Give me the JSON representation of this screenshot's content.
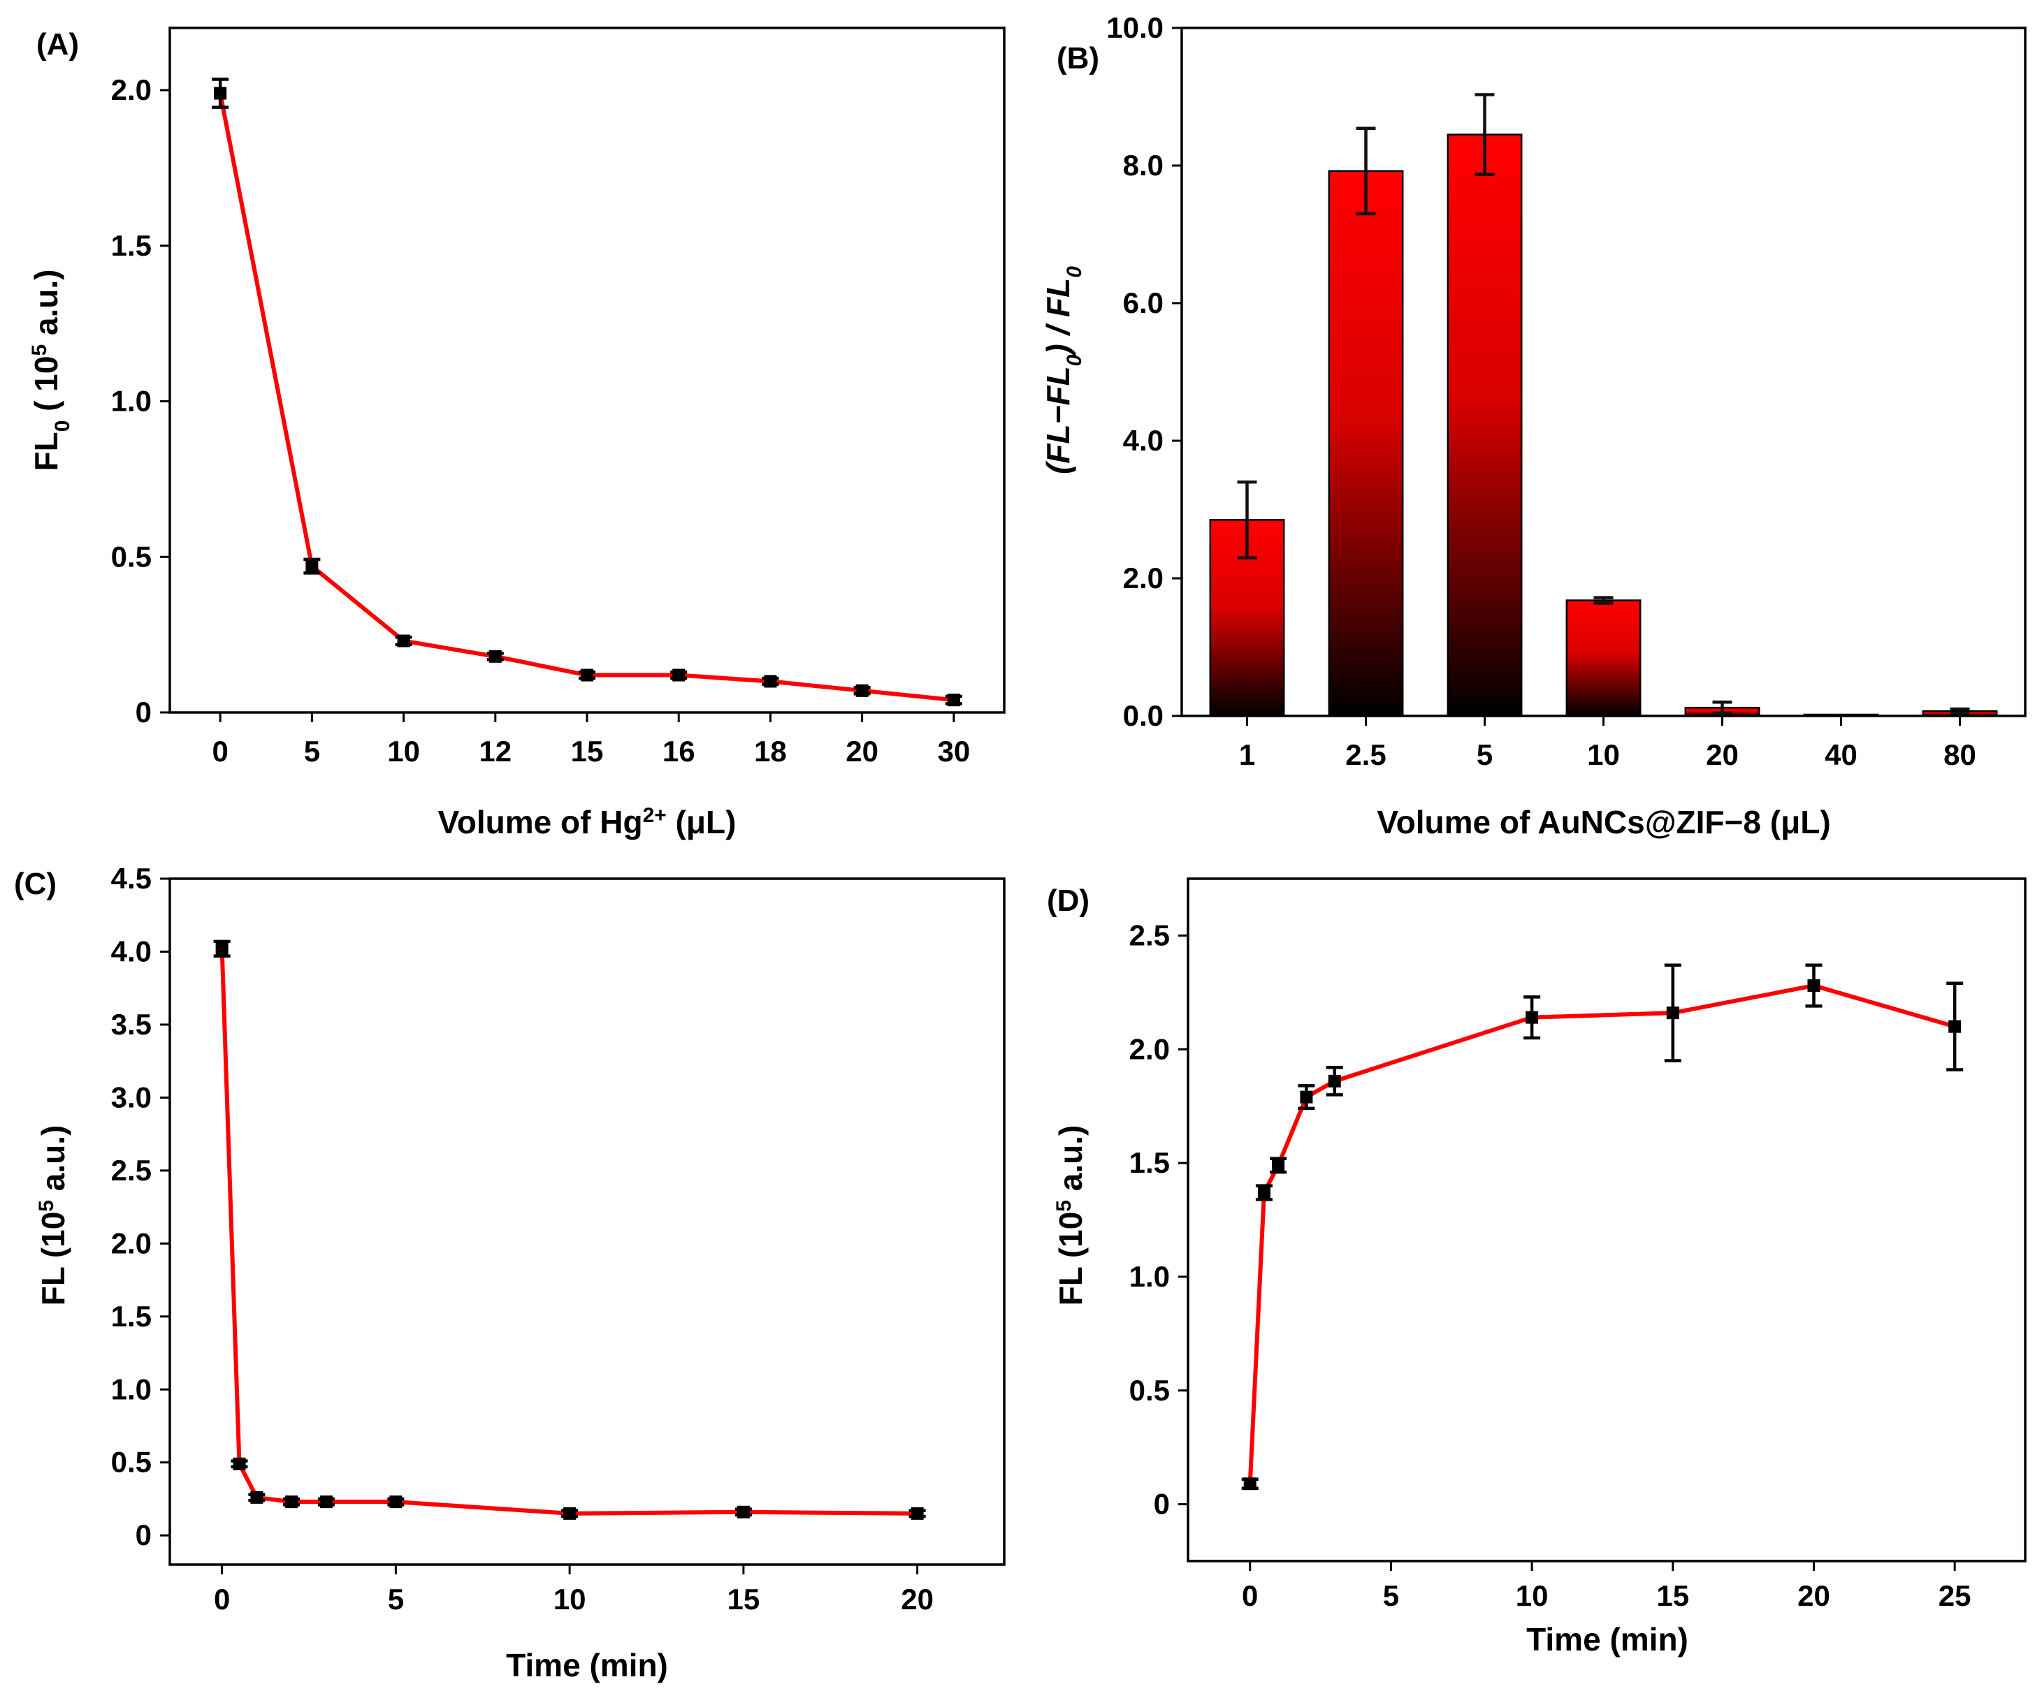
{
  "chart_data": [
    {
      "id": "A",
      "type": "line",
      "panel_label": "(A)",
      "x_scale": "categorical",
      "categories": [
        "0",
        "5",
        "10",
        "12",
        "15",
        "16",
        "18",
        "20",
        "30"
      ],
      "series": [
        {
          "values": [
            1.99,
            0.47,
            0.23,
            0.18,
            0.12,
            0.12,
            0.1,
            0.07,
            0.04
          ],
          "errors": [
            0.045,
            0.022,
            0.012,
            0.01,
            0.01,
            0.01,
            0.01,
            0.01,
            0.012
          ]
        }
      ],
      "ylim": [
        0,
        2.2
      ],
      "yticks": [
        0,
        0.5,
        1.0,
        1.5,
        2.0
      ],
      "ytick_labels": [
        "0",
        "0.5",
        "1.0",
        "1.5",
        "2.0"
      ],
      "ylabel": {
        "main": "FL",
        "sub": "0",
        "rest": " ( 10",
        "sup": "5",
        "tail": " a.u.)"
      },
      "xlabel": {
        "main": "Volume of Hg",
        "sup": "2+",
        "tail": " (μL)"
      },
      "line_color": "#ff0000",
      "marker_color": "#000000",
      "grid": false
    },
    {
      "id": "B",
      "type": "bar",
      "panel_label": "(B)",
      "categories": [
        "1",
        "2.5",
        "5",
        "10",
        "20",
        "40",
        "80"
      ],
      "series": [
        {
          "values": [
            2.85,
            7.92,
            8.45,
            1.68,
            0.12,
            0.02,
            0.07
          ],
          "errors": [
            0.55,
            0.62,
            0.58,
            0.04,
            0.08,
            0.0,
            0.03
          ]
        }
      ],
      "ylim": [
        0,
        10.0
      ],
      "yticks": [
        0,
        2.0,
        4.0,
        6.0,
        8.0,
        10.0
      ],
      "ytick_labels": [
        "0.0",
        "2.0",
        "4.0",
        "6.0",
        "8.0",
        "10.0"
      ],
      "ylabel": {
        "text": "(FL−FL",
        "sub": "0",
        "tail": ") / FL",
        "sub2": "0"
      },
      "xlabel": {
        "text": "Volume of AuNCs@ZIF−8 (μL)"
      },
      "bar_gradient": [
        "#ff0000",
        "#000000"
      ],
      "grid": false
    },
    {
      "id": "C",
      "type": "line",
      "panel_label": "(C)",
      "x": [
        0,
        0.5,
        1,
        2,
        3,
        5,
        10,
        15,
        20
      ],
      "series": [
        {
          "values": [
            4.02,
            0.49,
            0.26,
            0.23,
            0.23,
            0.23,
            0.15,
            0.16,
            0.15
          ],
          "errors": [
            0.05,
            0.02,
            0.02,
            0.02,
            0.02,
            0.02,
            0.02,
            0.02,
            0.02
          ]
        }
      ],
      "xlim": [
        -1.5,
        22.5
      ],
      "xticks": [
        0,
        5,
        10,
        15,
        20
      ],
      "ylim": [
        -0.2,
        4.5
      ],
      "yticks": [
        0,
        0.5,
        1.0,
        1.5,
        2.0,
        2.5,
        3.0,
        3.5,
        4.0,
        4.5
      ],
      "ytick_labels": [
        "0",
        "0.5",
        "1.0",
        "1.5",
        "2.0",
        "2.5",
        "3.0",
        "3.5",
        "4.0",
        "4.5"
      ],
      "ylabel": {
        "main": "FL",
        "rest": "  (10",
        "sup": "5",
        "tail": " a.u.)"
      },
      "xlabel": {
        "text": "Time (min)"
      },
      "line_color": "#ff0000",
      "marker_color": "#000000",
      "grid": false
    },
    {
      "id": "D",
      "type": "line",
      "panel_label": "(D)",
      "x": [
        0,
        0.5,
        1,
        2,
        3,
        10,
        15,
        20,
        25
      ],
      "series": [
        {
          "values": [
            0.09,
            1.37,
            1.49,
            1.79,
            1.86,
            2.14,
            2.16,
            2.28,
            2.1
          ],
          "errors": [
            0.02,
            0.03,
            0.03,
            0.05,
            0.06,
            0.09,
            0.21,
            0.09,
            0.19
          ]
        }
      ],
      "xlim": [
        -2.2,
        27.5
      ],
      "xticks": [
        0,
        5,
        10,
        15,
        20,
        25
      ],
      "ylim": [
        -0.25,
        2.75
      ],
      "yticks": [
        0,
        0.5,
        1.0,
        1.5,
        2.0,
        2.5
      ],
      "ytick_labels": [
        "0",
        "0.5",
        "1.0",
        "1.5",
        "2.0",
        "2.5"
      ],
      "ylabel": {
        "main": "FL",
        "rest": " (10",
        "sup": "5",
        "tail": " a.u.)"
      },
      "xlabel": {
        "text": "Time (min)"
      },
      "line_color": "#ff0000",
      "marker_color": "#000000",
      "grid": false
    }
  ]
}
